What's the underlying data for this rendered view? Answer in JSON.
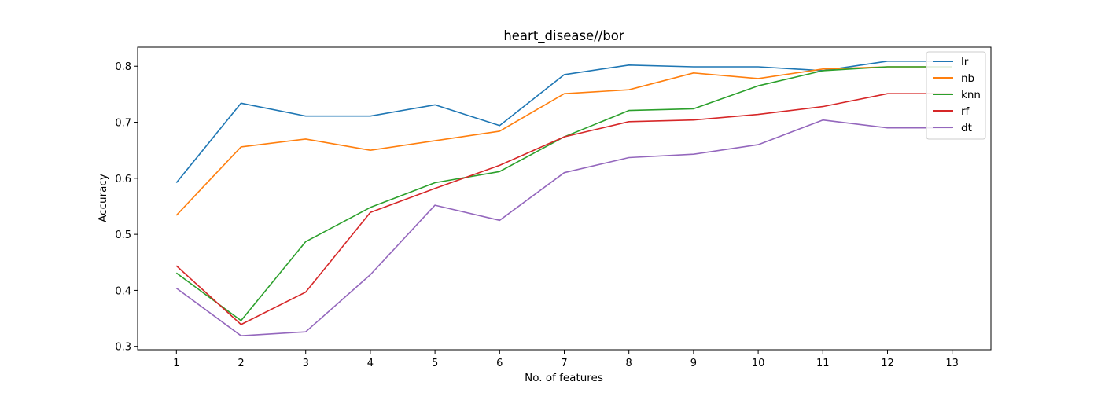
{
  "chart_data": {
    "type": "line",
    "title": "heart_disease//bor",
    "xlabel": "No. of features",
    "ylabel": "Accuracy",
    "x": [
      1,
      2,
      3,
      4,
      5,
      6,
      7,
      8,
      9,
      10,
      11,
      12,
      13
    ],
    "xticks": [
      "1",
      "2",
      "3",
      "4",
      "5",
      "6",
      "7",
      "8",
      "9",
      "10",
      "11",
      "12",
      "13"
    ],
    "yticks": [
      "0.3",
      "0.4",
      "0.5",
      "0.6",
      "0.7",
      "0.8"
    ],
    "xlim": [
      0.4,
      13.6
    ],
    "ylim": [
      0.294,
      0.834
    ],
    "grid": false,
    "legend_position": "top-right",
    "series": [
      {
        "name": "lr",
        "color": "#1f77b4",
        "values": [
          0.592,
          0.734,
          0.711,
          0.711,
          0.731,
          0.694,
          0.785,
          0.802,
          0.799,
          0.799,
          0.792,
          0.809,
          0.809
        ]
      },
      {
        "name": "nb",
        "color": "#ff7f0e",
        "values": [
          0.534,
          0.656,
          0.67,
          0.65,
          0.667,
          0.684,
          0.751,
          0.758,
          0.788,
          0.778,
          0.795,
          0.799,
          0.799
        ]
      },
      {
        "name": "knn",
        "color": "#2ca02c",
        "values": [
          0.431,
          0.346,
          0.487,
          0.548,
          0.592,
          0.612,
          0.674,
          0.721,
          0.724,
          0.765,
          0.792,
          0.799,
          0.799
        ]
      },
      {
        "name": "rf",
        "color": "#d62728",
        "values": [
          0.444,
          0.339,
          0.397,
          0.539,
          0.582,
          0.623,
          0.674,
          0.701,
          0.704,
          0.714,
          0.728,
          0.751,
          0.751
        ]
      },
      {
        "name": "dt",
        "color": "#9467bd",
        "values": [
          0.404,
          0.319,
          0.326,
          0.428,
          0.552,
          0.525,
          0.61,
          0.637,
          0.643,
          0.66,
          0.704,
          0.69,
          0.69
        ]
      }
    ]
  }
}
